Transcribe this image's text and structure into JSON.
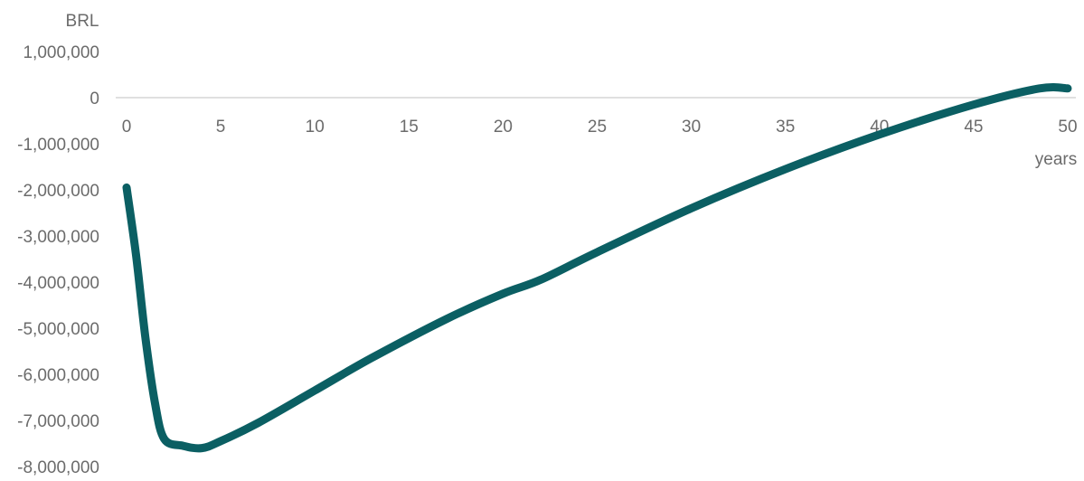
{
  "chart_data": {
    "type": "line",
    "title": "",
    "xlabel": "years",
    "ylabel": "BRL",
    "xlim": [
      0,
      50
    ],
    "ylim": [
      -8000000,
      1000000
    ],
    "x_ticks": [
      0,
      5,
      10,
      15,
      20,
      25,
      30,
      35,
      40,
      45,
      50
    ],
    "x_tick_labels": [
      "0",
      "5",
      "10",
      "15",
      "20",
      "25",
      "30",
      "35",
      "40",
      "45",
      "50"
    ],
    "y_ticks": [
      1000000,
      0,
      -1000000,
      -2000000,
      -3000000,
      -4000000,
      -5000000,
      -6000000,
      -7000000,
      -8000000
    ],
    "y_tick_labels": [
      "1,000,000",
      "0",
      "-1,000,000",
      "-2,000,000",
      "-3,000,000",
      "-4,000,000",
      "-5,000,000",
      "-6,000,000",
      "-7,000,000",
      "-8,000,000"
    ],
    "grid": false,
    "series": [
      {
        "name": "",
        "color": "#0b5f63",
        "x": [
          0,
          0.5,
          1,
          1.5,
          2,
          3,
          4,
          5,
          7,
          10,
          13,
          17,
          20,
          22,
          25,
          30,
          35,
          40,
          45,
          48.5,
          50
        ],
        "y": [
          -1950000,
          -3400000,
          -5200000,
          -6600000,
          -7400000,
          -7550000,
          -7600000,
          -7450000,
          -7050000,
          -6350000,
          -5650000,
          -4800000,
          -4250000,
          -3950000,
          -3350000,
          -2400000,
          -1550000,
          -800000,
          -150000,
          200000,
          200000
        ]
      }
    ]
  }
}
